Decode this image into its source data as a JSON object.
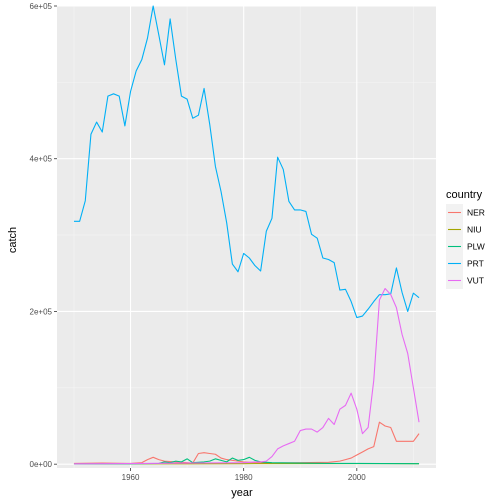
{
  "chart_data": {
    "type": "line",
    "title": "",
    "xlabel": "year",
    "ylabel": "catch",
    "xlim": [
      1947,
      2014
    ],
    "ylim": [
      -5000,
      600000
    ],
    "x_ticks": [
      1960,
      1980,
      2000
    ],
    "x_tick_labels": [
      "1960",
      "1980",
      "2000"
    ],
    "y_ticks": [
      0,
      200000,
      400000,
      600000
    ],
    "y_tick_labels": [
      "0e+00",
      "2e+05",
      "4e+05",
      "6e+05"
    ],
    "grid": true,
    "legend": {
      "title": "country",
      "position": "right"
    },
    "series": [
      {
        "name": "NER",
        "color": "#F8766D",
        "x": [
          1950,
          1955,
          1960,
          1962,
          1963,
          1964,
          1965,
          1966,
          1968,
          1970,
          1971,
          1972,
          1973,
          1974,
          1975,
          1976,
          1977,
          1978,
          1979,
          1980,
          1982,
          1985,
          1990,
          1995,
          1997,
          1998,
          1999,
          2000,
          2001,
          2002,
          2003,
          2004,
          2005,
          2006,
          2007,
          2008,
          2009,
          2010,
          2011
        ],
        "y": [
          1000,
          1500,
          1000,
          2000,
          6000,
          9000,
          6000,
          4000,
          3000,
          2000,
          1500,
          14000,
          15000,
          14000,
          13000,
          8000,
          6000,
          5000,
          4000,
          3000,
          2000,
          1500,
          2000,
          2500,
          4000,
          6000,
          8000,
          12000,
          16000,
          20000,
          23000,
          55000,
          50000,
          48000,
          30000,
          30000,
          30000,
          30000,
          40000
        ]
      },
      {
        "name": "NIU",
        "color": "#A3A500",
        "x": [
          1950,
          1960,
          1970,
          1980,
          1990,
          2000,
          2011
        ],
        "y": [
          300,
          400,
          500,
          700,
          800,
          800,
          700
        ]
      },
      {
        "name": "PLW",
        "color": "#00BF7D",
        "x": [
          1950,
          1960,
          1965,
          1966,
          1967,
          1968,
          1969,
          1970,
          1971,
          1972,
          1973,
          1974,
          1975,
          1976,
          1977,
          1978,
          1979,
          1980,
          1981,
          1982,
          1983,
          1985,
          1990,
          1995,
          2000,
          2005,
          2011
        ],
        "y": [
          300,
          500,
          1000,
          3000,
          2000,
          4000,
          3000,
          7000,
          2000,
          2500,
          3000,
          4000,
          7000,
          5000,
          3000,
          8000,
          5000,
          6000,
          9000,
          5000,
          3000,
          2000,
          1500,
          1000,
          1000,
          800,
          700
        ]
      },
      {
        "name": "PRT",
        "color": "#00B0F6",
        "x": [
          1950,
          1951,
          1952,
          1953,
          1954,
          1955,
          1956,
          1957,
          1958,
          1959,
          1960,
          1961,
          1962,
          1963,
          1964,
          1965,
          1966,
          1967,
          1968,
          1969,
          1970,
          1971,
          1972,
          1973,
          1974,
          1975,
          1976,
          1977,
          1978,
          1979,
          1980,
          1981,
          1982,
          1983,
          1984,
          1985,
          1986,
          1987,
          1988,
          1989,
          1990,
          1991,
          1992,
          1993,
          1994,
          1995,
          1996,
          1997,
          1998,
          1999,
          2000,
          2001,
          2002,
          2003,
          2004,
          2005,
          2006,
          2007,
          2008,
          2009,
          2010,
          2011
        ],
        "y": [
          318000,
          318000,
          345000,
          432000,
          448000,
          435000,
          482000,
          485000,
          482000,
          443000,
          488000,
          515000,
          530000,
          558000,
          600000,
          562000,
          523000,
          583000,
          530000,
          482000,
          478000,
          453000,
          457000,
          492000,
          445000,
          390000,
          357000,
          316000,
          262000,
          252000,
          276000,
          270000,
          260000,
          253000,
          305000,
          322000,
          402000,
          386000,
          344000,
          333000,
          333000,
          331000,
          301000,
          296000,
          270000,
          268000,
          264000,
          228000,
          229000,
          213000,
          192000,
          194000,
          203000,
          213000,
          222000,
          222000,
          223000,
          257000,
          225000,
          200000,
          224000,
          218000
        ]
      },
      {
        "name": "VUT",
        "color": "#E76BF3",
        "x": [
          1950,
          1960,
          1970,
          1980,
          1982,
          1983,
          1984,
          1985,
          1986,
          1987,
          1988,
          1989,
          1990,
          1991,
          1992,
          1993,
          1994,
          1995,
          1996,
          1997,
          1998,
          1999,
          2000,
          2001,
          2002,
          2003,
          2004,
          2005,
          2006,
          2007,
          2008,
          2009,
          2010,
          2011
        ],
        "y": [
          500,
          800,
          1500,
          2000,
          3000,
          3000,
          4000,
          10000,
          20000,
          24000,
          27000,
          30000,
          44000,
          46000,
          46000,
          42000,
          48000,
          60000,
          52000,
          72000,
          77000,
          93000,
          72000,
          40000,
          48000,
          110000,
          215000,
          230000,
          222000,
          205000,
          170000,
          145000,
          100000,
          55000
        ]
      }
    ]
  }
}
